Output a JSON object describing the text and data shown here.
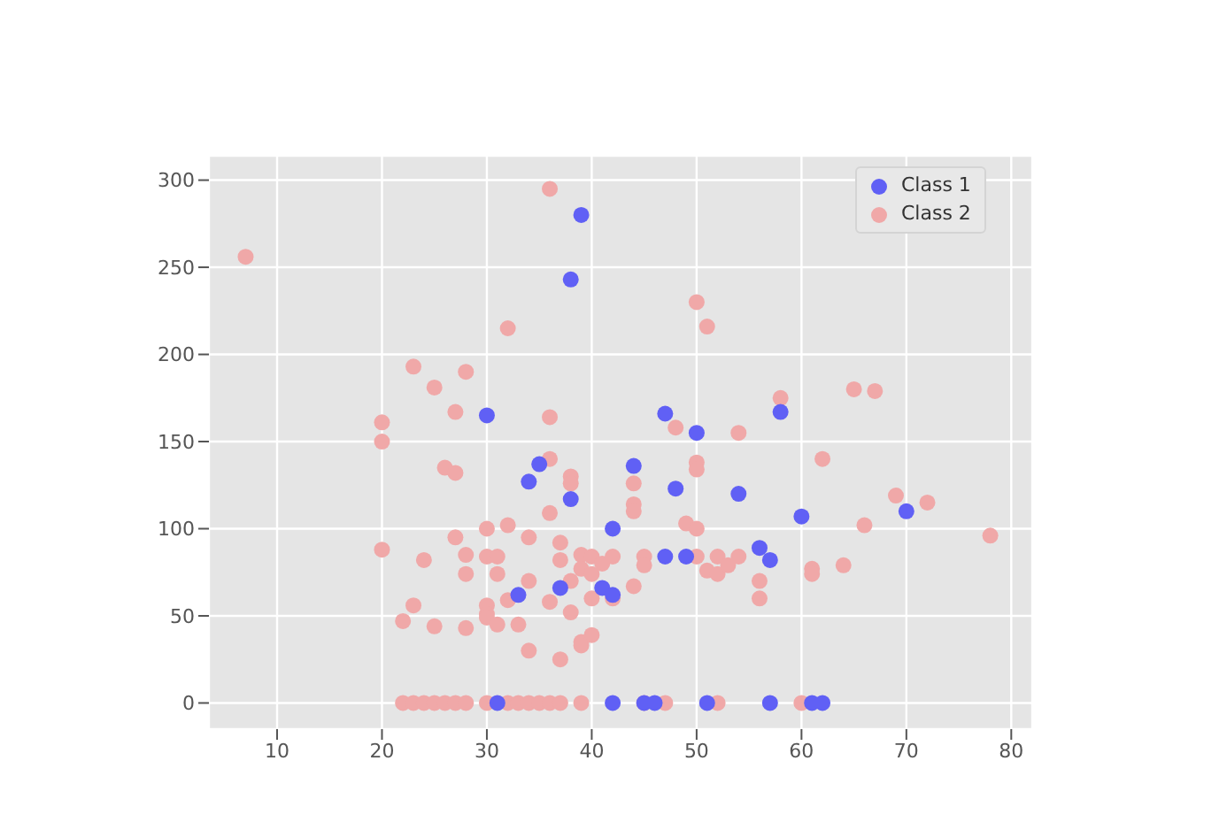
{
  "chart_data": {
    "type": "scatter",
    "xlim": [
      3.5,
      82
    ],
    "ylim": [
      -15,
      314
    ],
    "xticks": [
      10,
      20,
      30,
      40,
      50,
      60,
      70,
      80
    ],
    "yticks": [
      0,
      50,
      100,
      150,
      200,
      250,
      300
    ],
    "grid": true,
    "legend": "top right",
    "marker": "circle",
    "series": [
      {
        "name": "Class 1",
        "color": "#6060f5",
        "x": [
          39,
          38,
          30,
          35,
          34,
          38,
          47,
          50,
          44,
          48,
          54,
          58,
          60,
          70,
          42,
          47,
          49,
          56,
          57,
          41,
          42,
          33,
          37,
          31,
          42,
          45,
          46,
          51,
          57,
          61,
          62
        ],
        "values": [
          280,
          243,
          165,
          137,
          127,
          117,
          166,
          155,
          136,
          123,
          120,
          167,
          107,
          110,
          100,
          84,
          84,
          89,
          82,
          66,
          62,
          62,
          66,
          0,
          0,
          0,
          0,
          0,
          0,
          0,
          0
        ]
      },
      {
        "name": "Class 2",
        "color": "#f0a8a8",
        "x": [
          7,
          36,
          32,
          23,
          25,
          28,
          27,
          20,
          20,
          36,
          50,
          51,
          48,
          54,
          58,
          65,
          67,
          20,
          22,
          23,
          24,
          25,
          26,
          27,
          27,
          28,
          28,
          28,
          30,
          30,
          30,
          30,
          30,
          31,
          31,
          31,
          32,
          32,
          33,
          34,
          34,
          34,
          36,
          36,
          37,
          37,
          37,
          38,
          38,
          38,
          39,
          36,
          39,
          39,
          40,
          40,
          40,
          40,
          39,
          38,
          41,
          42,
          42,
          44,
          44,
          44,
          44,
          45,
          45,
          49,
          50,
          50,
          50,
          50,
          51,
          52,
          52,
          53,
          54,
          56,
          56,
          61,
          61,
          62,
          64,
          66,
          69,
          72,
          78,
          22,
          23,
          24,
          25,
          26,
          27,
          28,
          30,
          32,
          33,
          34,
          35,
          36,
          37,
          39,
          45,
          47,
          52,
          60
        ],
        "values": [
          256,
          295,
          215,
          193,
          181,
          190,
          167,
          161,
          150,
          164,
          230,
          216,
          158,
          155,
          175,
          180,
          179,
          88,
          47,
          56,
          82,
          44,
          135,
          132,
          95,
          85,
          74,
          43,
          100,
          84,
          56,
          51,
          49,
          84,
          74,
          45,
          102,
          59,
          45,
          95,
          70,
          30,
          109,
          58,
          92,
          25,
          82,
          130,
          126,
          52,
          35,
          140,
          85,
          77,
          84,
          74,
          60,
          39,
          33,
          70,
          80,
          84,
          60,
          126,
          114,
          110,
          67,
          84,
          79,
          103,
          138,
          134,
          100,
          84,
          76,
          84,
          74,
          79,
          84,
          70,
          60,
          77,
          74,
          140,
          79,
          102,
          119,
          115,
          96,
          0,
          0,
          0,
          0,
          0,
          0,
          0,
          0,
          0,
          0,
          0,
          0,
          0,
          0,
          0,
          0,
          0,
          0,
          0
        ]
      }
    ]
  }
}
